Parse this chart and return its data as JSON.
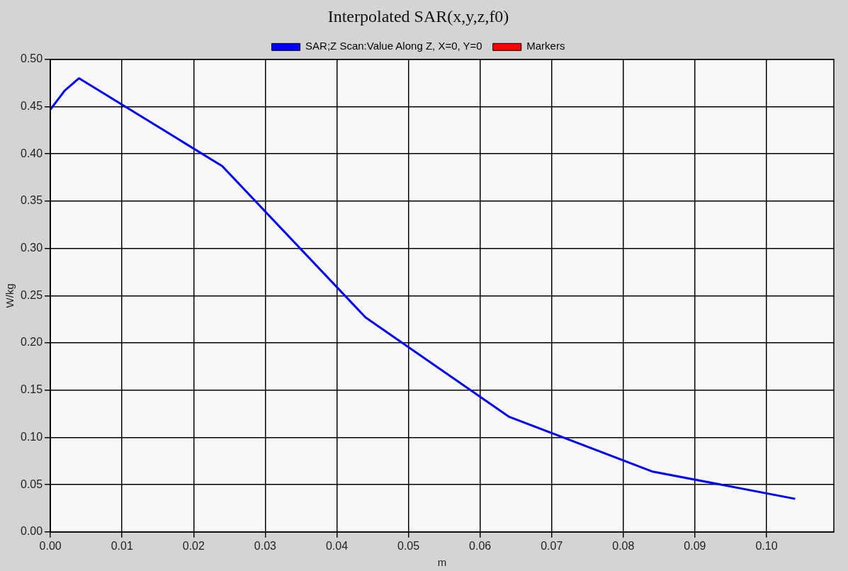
{
  "chart_data": {
    "type": "line",
    "title": "Interpolated SAR(x,y,z,f0)",
    "xlabel": "m",
    "ylabel": "W/kg",
    "x": [
      0,
      0.002,
      0.004,
      0.024,
      0.044,
      0.064,
      0.084,
      0.104
    ],
    "series": [
      {
        "name": "SAR;Z Scan:Value Along Z, X=0, Y=0",
        "color": "#0000ff",
        "values": [
          0.447,
          0.467,
          0.48,
          0.387,
          0.227,
          0.122,
          0.064,
          0.035
        ]
      },
      {
        "name": "Markers",
        "color": "#ff0000",
        "values": [
          null,
          null,
          null,
          null,
          null,
          null,
          null,
          null
        ]
      }
    ],
    "xlim": [
      0,
      0.1094
    ],
    "xticks": [
      {
        "value": 0,
        "label": "0.00"
      },
      {
        "value": 0.01,
        "label": "0.01"
      },
      {
        "value": 0.02,
        "label": "0.02"
      },
      {
        "value": 0.03,
        "label": "0.03"
      },
      {
        "value": 0.04,
        "label": "0.04"
      },
      {
        "value": 0.05,
        "label": "0.05"
      },
      {
        "value": 0.06,
        "label": "0.06"
      },
      {
        "value": 0.07,
        "label": "0.07"
      },
      {
        "value": 0.08,
        "label": "0.08"
      },
      {
        "value": 0.09,
        "label": "0.09"
      },
      {
        "value": 0.1,
        "label": "0.10"
      }
    ],
    "ylim": [
      0,
      0.5
    ],
    "yticks": [
      {
        "value": 0,
        "label": "0.00"
      },
      {
        "value": 0.05,
        "label": "0.05"
      },
      {
        "value": 0.1,
        "label": "0.10"
      },
      {
        "value": 0.15,
        "label": "0.15"
      },
      {
        "value": 0.2,
        "label": "0.20"
      },
      {
        "value": 0.25,
        "label": "0.25"
      },
      {
        "value": 0.3,
        "label": "0.30"
      },
      {
        "value": 0.35,
        "label": "0.35"
      },
      {
        "value": 0.4,
        "label": "0.40"
      },
      {
        "value": 0.45,
        "label": "0.45"
      },
      {
        "value": 0.5,
        "label": "0.50"
      }
    ],
    "grid": true,
    "legend": "top",
    "marker": "none",
    "line_style": "solid"
  }
}
